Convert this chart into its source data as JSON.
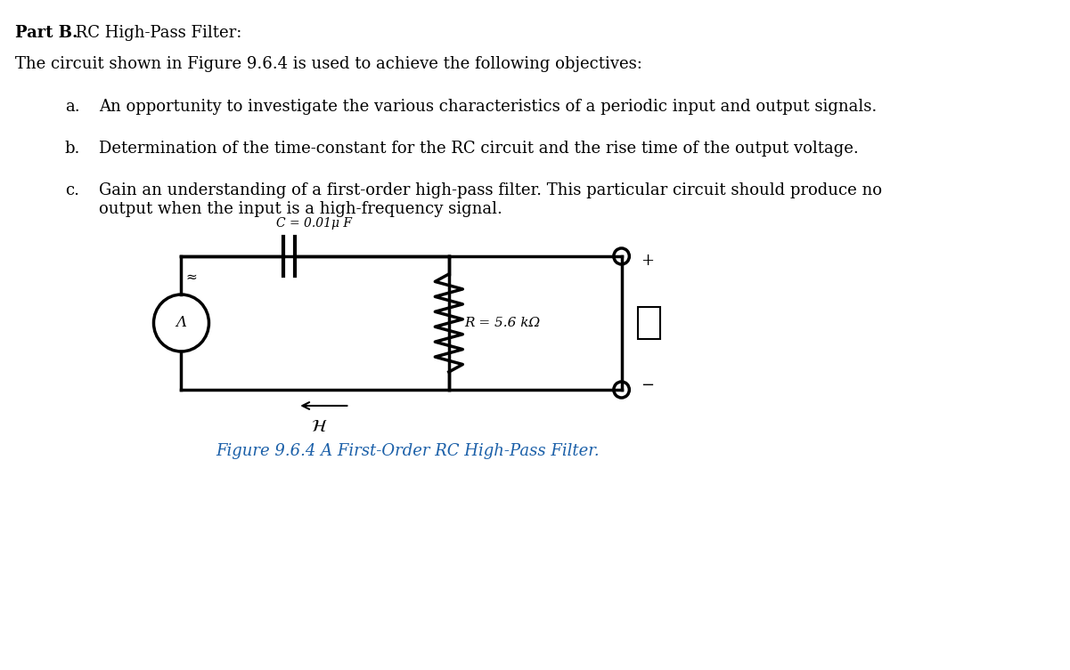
{
  "title_bold": "Part B.",
  "title_normal": " RC High-Pass Filter:",
  "intro": "The circuit shown in Figure 9.6.4 is used to achieve the following objectives:",
  "items": [
    {
      "label": "a.",
      "text": "An opportunity to investigate the various characteristics of a periodic input and output signals."
    },
    {
      "label": "b.",
      "text": "Determination of the time-constant for the RC circuit and the rise time of the output voltage."
    },
    {
      "label": "c.",
      "text": "Gain an understanding of a first-order high-pass filter. This particular circuit should produce no\noutput when the input is a high-frequency signal."
    }
  ],
  "fig_caption": "Figure 9.6.4 A First-Order RC High-Pass Filter.",
  "cap_label": "C = 0.01μ F",
  "res_label": "R = 5.6 kΩ",
  "bg_color": "#ffffff",
  "text_color": "#000000",
  "fig_caption_color": "#1a5fa8",
  "circuit_lw": 2.5,
  "font_family": "serif"
}
